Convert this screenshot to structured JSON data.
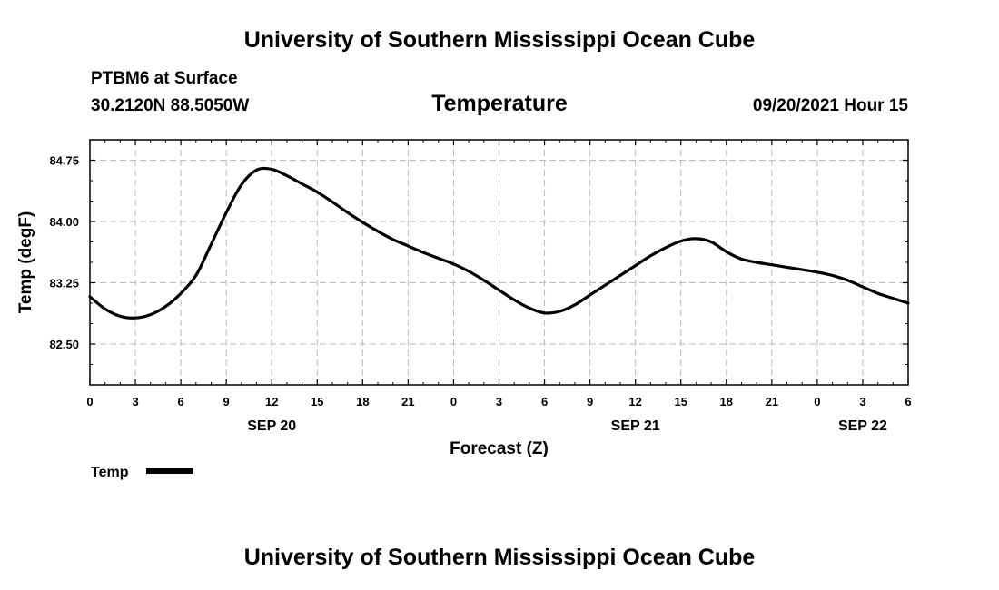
{
  "header": {
    "title": "University of Southern Mississippi Ocean Cube",
    "station": "PTBM6 at Surface",
    "coords": "30.2120N  88.5050W",
    "datetime": "09/20/2021 Hour 15"
  },
  "footer": {
    "title": "University of Southern Mississippi Ocean Cube"
  },
  "colors": {
    "line": "#000000",
    "grid": "#bbbbbb",
    "background": "#ffffff"
  },
  "chart_data": {
    "type": "line",
    "title": "Temperature",
    "xlabel": "Forecast (Z)",
    "ylabel": "Temp (degF)",
    "xlim": [
      0,
      54
    ],
    "ylim": [
      82.0,
      85.0
    ],
    "y_ticks": [
      82.5,
      83.25,
      84.0,
      84.75
    ],
    "y_tick_labels": [
      "82.50",
      "83.25",
      "84.00",
      "84.75"
    ],
    "x_ticks": [
      0,
      3,
      6,
      9,
      12,
      15,
      18,
      21,
      24,
      27,
      30,
      33,
      36,
      39,
      42,
      45,
      48,
      51,
      54
    ],
    "x_tick_labels": [
      "0",
      "3",
      "6",
      "9",
      "12",
      "15",
      "18",
      "21",
      "0",
      "3",
      "6",
      "9",
      "12",
      "15",
      "18",
      "21",
      "0",
      "3",
      "6"
    ],
    "date_labels": [
      {
        "x": 12,
        "label": "SEP 20"
      },
      {
        "x": 36,
        "label": "SEP 21"
      },
      {
        "x": 51,
        "label": "SEP 22"
      }
    ],
    "grid": true,
    "legend_position": "bottom-left",
    "series": [
      {
        "name": "Temp",
        "x": [
          0,
          1,
          2,
          3,
          4,
          5,
          6,
          7,
          8,
          9,
          10,
          11,
          12,
          13,
          14,
          15,
          16,
          17,
          18,
          19,
          20,
          21,
          22,
          23,
          24,
          25,
          26,
          27,
          28,
          29,
          30,
          31,
          32,
          33,
          34,
          35,
          36,
          37,
          38,
          39,
          40,
          41,
          42,
          43,
          44,
          45,
          46,
          47,
          48,
          49,
          50,
          51,
          52,
          53,
          54
        ],
        "values": [
          83.08,
          82.93,
          82.84,
          82.82,
          82.86,
          82.96,
          83.12,
          83.34,
          83.72,
          84.11,
          84.45,
          84.63,
          84.64,
          84.56,
          84.46,
          84.36,
          84.24,
          84.11,
          83.99,
          83.88,
          83.78,
          83.7,
          83.62,
          83.55,
          83.48,
          83.39,
          83.28,
          83.16,
          83.04,
          82.94,
          82.88,
          82.9,
          82.98,
          83.1,
          83.22,
          83.34,
          83.46,
          83.58,
          83.68,
          83.76,
          83.79,
          83.75,
          83.63,
          83.54,
          83.5,
          83.47,
          83.44,
          83.41,
          83.38,
          83.34,
          83.28,
          83.2,
          83.12,
          83.06,
          83.0
        ]
      }
    ]
  }
}
